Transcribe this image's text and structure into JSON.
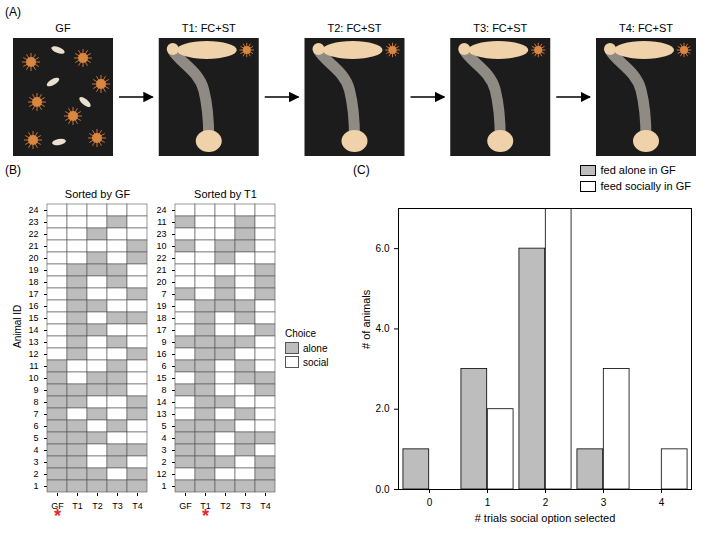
{
  "diagram": {
    "panel": "(A)",
    "steps": [
      "GF",
      "T1: FC+ST",
      "T2: FC+ST",
      "T3: FC+ST",
      "T4: FC+ST"
    ]
  },
  "chart_data": [
    {
      "type": "heatmap",
      "panel": "(B)",
      "title": "Sorted by GF",
      "ylabel": "Animal ID",
      "x_categories": [
        "GF",
        "T1",
        "T2",
        "T3",
        "T4"
      ],
      "y_categories": [
        24,
        23,
        22,
        21,
        20,
        19,
        18,
        17,
        16,
        15,
        14,
        13,
        12,
        11,
        10,
        9,
        8,
        7,
        6,
        5,
        4,
        3,
        2,
        1
      ],
      "cells": [
        [
          "social",
          "social",
          "social",
          "social",
          "social"
        ],
        [
          "social",
          "social",
          "social",
          "alone",
          "social"
        ],
        [
          "social",
          "social",
          "alone",
          "social",
          "social"
        ],
        [
          "social",
          "social",
          "social",
          "social",
          "alone"
        ],
        [
          "social",
          "social",
          "alone",
          "social",
          "alone"
        ],
        [
          "social",
          "alone",
          "alone",
          "alone",
          "social"
        ],
        [
          "social",
          "alone",
          "social",
          "alone",
          "social"
        ],
        [
          "social",
          "alone",
          "social",
          "social",
          "alone"
        ],
        [
          "social",
          "alone",
          "alone",
          "social",
          "social"
        ],
        [
          "social",
          "alone",
          "social",
          "alone",
          "alone"
        ],
        [
          "social",
          "alone",
          "alone",
          "social",
          "social"
        ],
        [
          "social",
          "alone",
          "social",
          "alone",
          "social"
        ],
        [
          "social",
          "alone",
          "social",
          "social",
          "alone"
        ],
        [
          "alone",
          "social",
          "social",
          "alone",
          "social"
        ],
        [
          "alone",
          "social",
          "alone",
          "alone",
          "social"
        ],
        [
          "alone",
          "alone",
          "alone",
          "alone",
          "social"
        ],
        [
          "alone",
          "alone",
          "social",
          "social",
          "alone"
        ],
        [
          "alone",
          "social",
          "alone",
          "social",
          "alone"
        ],
        [
          "alone",
          "alone",
          "social",
          "alone",
          "social"
        ],
        [
          "alone",
          "alone",
          "alone",
          "social",
          "social"
        ],
        [
          "alone",
          "alone",
          "social",
          "alone",
          "alone"
        ],
        [
          "alone",
          "alone",
          "social",
          "alone",
          "social"
        ],
        [
          "alone",
          "alone",
          "alone",
          "social",
          "alone"
        ],
        [
          "alone",
          "alone",
          "alone",
          "alone",
          "alone"
        ]
      ],
      "annotation": {
        "text": "*",
        "x": "GF",
        "color": "#e8262b"
      }
    },
    {
      "type": "heatmap",
      "title": "Sorted by T1",
      "x_categories": [
        "GF",
        "T1",
        "T2",
        "T3",
        "T4"
      ],
      "y_categories": [
        24,
        11,
        23,
        10,
        22,
        21,
        20,
        7,
        19,
        18,
        17,
        9,
        16,
        6,
        15,
        8,
        14,
        13,
        5,
        4,
        3,
        2,
        12,
        1
      ],
      "cells": [
        [
          "social",
          "social",
          "social",
          "social",
          "social"
        ],
        [
          "alone",
          "social",
          "social",
          "alone",
          "social"
        ],
        [
          "social",
          "social",
          "social",
          "alone",
          "social"
        ],
        [
          "alone",
          "social",
          "alone",
          "alone",
          "social"
        ],
        [
          "social",
          "social",
          "alone",
          "social",
          "social"
        ],
        [
          "social",
          "social",
          "social",
          "social",
          "alone"
        ],
        [
          "social",
          "social",
          "alone",
          "social",
          "alone"
        ],
        [
          "alone",
          "social",
          "alone",
          "social",
          "alone"
        ],
        [
          "social",
          "alone",
          "alone",
          "alone",
          "social"
        ],
        [
          "social",
          "alone",
          "social",
          "alone",
          "social"
        ],
        [
          "social",
          "alone",
          "social",
          "social",
          "alone"
        ],
        [
          "alone",
          "alone",
          "alone",
          "alone",
          "social"
        ],
        [
          "social",
          "alone",
          "alone",
          "social",
          "social"
        ],
        [
          "alone",
          "alone",
          "social",
          "alone",
          "social"
        ],
        [
          "social",
          "alone",
          "social",
          "alone",
          "alone"
        ],
        [
          "alone",
          "alone",
          "social",
          "social",
          "alone"
        ],
        [
          "social",
          "alone",
          "alone",
          "social",
          "social"
        ],
        [
          "social",
          "alone",
          "social",
          "alone",
          "social"
        ],
        [
          "alone",
          "alone",
          "alone",
          "social",
          "social"
        ],
        [
          "alone",
          "alone",
          "social",
          "alone",
          "alone"
        ],
        [
          "alone",
          "alone",
          "social",
          "alone",
          "social"
        ],
        [
          "alone",
          "alone",
          "alone",
          "social",
          "alone"
        ],
        [
          "social",
          "alone",
          "social",
          "social",
          "alone"
        ],
        [
          "alone",
          "alone",
          "alone",
          "alone",
          "alone"
        ]
      ],
      "annotation": {
        "text": "*",
        "x": "T1",
        "color": "#e8262b"
      },
      "legend": "right",
      "color_key": {
        "title": "Choice",
        "entries": [
          {
            "name": "alone",
            "color": "#bdbdbd"
          },
          {
            "name": "social",
            "color": "#ffffff"
          }
        ]
      }
    },
    {
      "type": "bar",
      "panel": "(C)",
      "categories": [
        0,
        1,
        2,
        3,
        4
      ],
      "xlabel": "# trials social option selected",
      "ylabel": "# of animals",
      "ylim": [
        0,
        7
      ],
      "yticks": [
        0,
        2,
        4,
        6
      ],
      "legend": "top right",
      "series": [
        {
          "name": "fed alone in GF",
          "color": "#bdbdbd",
          "values": [
            1,
            3,
            6,
            1,
            0
          ]
        },
        {
          "name": "feed socially in GF",
          "color": "#ffffff",
          "values": [
            0,
            2,
            7,
            3,
            1
          ]
        }
      ]
    }
  ]
}
